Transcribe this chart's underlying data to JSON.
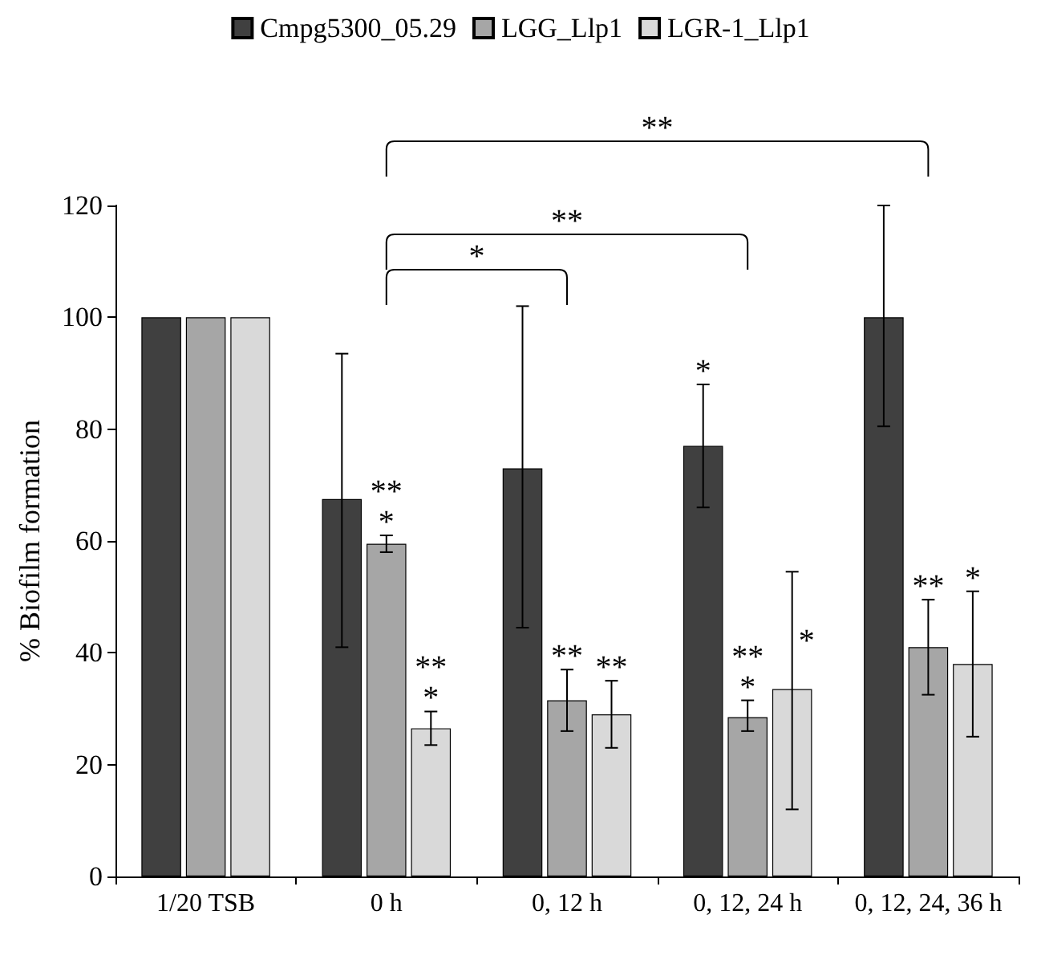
{
  "chart_data": {
    "type": "bar",
    "ylabel": "% Biofilm formation",
    "categories": [
      "1/20 TSB",
      "0 h",
      "0, 12 h",
      "0, 12, 24 h",
      "0, 12, 24, 36 h"
    ],
    "series": [
      {
        "name": "Cmpg5300_05.29",
        "color": "#404040",
        "values": [
          100,
          67.5,
          73,
          77,
          100
        ],
        "errors": [
          null,
          [
            41,
            93.5
          ],
          [
            44.5,
            102
          ],
          [
            66,
            88
          ],
          [
            80.5,
            120
          ]
        ],
        "value_labels": [
          null,
          null,
          null,
          "*",
          null
        ]
      },
      {
        "name": "LGG_Llp1",
        "color": "#a6a6a6",
        "values": [
          100,
          59.5,
          31.5,
          28.5,
          41
        ],
        "errors": [
          null,
          [
            58,
            61
          ],
          [
            26,
            37
          ],
          [
            26,
            31.5
          ],
          [
            32.5,
            49.5
          ]
        ],
        "value_labels": [
          null,
          "**\n*",
          "**",
          "**\n*",
          "**"
        ]
      },
      {
        "name": "LGR-1_Llp1",
        "color": "#d9d9d9",
        "values": [
          100,
          26.5,
          29,
          33.5,
          38
        ],
        "errors": [
          null,
          [
            23.5,
            29.5
          ],
          [
            23,
            35
          ],
          [
            12,
            54.5
          ],
          [
            25,
            51
          ]
        ],
        "value_labels": [
          null,
          "**\n*",
          "**",
          "*",
          "*"
        ]
      }
    ],
    "annotations": [
      "*",
      "**",
      "**"
    ],
    "ylim": [
      0,
      120
    ],
    "yticks": [
      0,
      20,
      40,
      60,
      80,
      100,
      120
    ],
    "grid": false,
    "legend": "top"
  }
}
